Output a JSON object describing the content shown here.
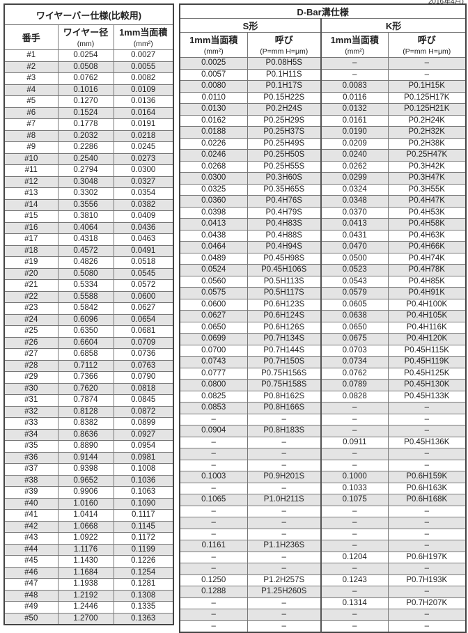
{
  "date_note": "2016年4月)",
  "left": {
    "title": "ワイヤーバー仕様(比較用)",
    "col_no": "番手",
    "col_dia": "ワイヤー径",
    "col_dia_unit": "(mm)",
    "col_area": "1mm当面積",
    "col_area_unit": "(mm²)",
    "rows": [
      [
        "#1",
        "0.0254",
        "0.0027"
      ],
      [
        "#2",
        "0.0508",
        "0.0055"
      ],
      [
        "#3",
        "0.0762",
        "0.0082"
      ],
      [
        "#4",
        "0.1016",
        "0.0109"
      ],
      [
        "#5",
        "0.1270",
        "0.0136"
      ],
      [
        "#6",
        "0.1524",
        "0.0164"
      ],
      [
        "#7",
        "0.1778",
        "0.0191"
      ],
      [
        "#8",
        "0.2032",
        "0.0218"
      ],
      [
        "#9",
        "0.2286",
        "0.0245"
      ],
      [
        "#10",
        "0.2540",
        "0.0273"
      ],
      [
        "#11",
        "0.2794",
        "0.0300"
      ],
      [
        "#12",
        "0.3048",
        "0.0327"
      ],
      [
        "#13",
        "0.3302",
        "0.0354"
      ],
      [
        "#14",
        "0.3556",
        "0.0382"
      ],
      [
        "#15",
        "0.3810",
        "0.0409"
      ],
      [
        "#16",
        "0.4064",
        "0.0436"
      ],
      [
        "#17",
        "0.4318",
        "0.0463"
      ],
      [
        "#18",
        "0.4572",
        "0.0491"
      ],
      [
        "#19",
        "0.4826",
        "0.0518"
      ],
      [
        "#20",
        "0.5080",
        "0.0545"
      ],
      [
        "#21",
        "0.5334",
        "0.0572"
      ],
      [
        "#22",
        "0.5588",
        "0.0600"
      ],
      [
        "#23",
        "0.5842",
        "0.0627"
      ],
      [
        "#24",
        "0.6096",
        "0.0654"
      ],
      [
        "#25",
        "0.6350",
        "0.0681"
      ],
      [
        "#26",
        "0.6604",
        "0.0709"
      ],
      [
        "#27",
        "0.6858",
        "0.0736"
      ],
      [
        "#28",
        "0.7112",
        "0.0763"
      ],
      [
        "#29",
        "0.7366",
        "0.0790"
      ],
      [
        "#30",
        "0.7620",
        "0.0818"
      ],
      [
        "#31",
        "0.7874",
        "0.0845"
      ],
      [
        "#32",
        "0.8128",
        "0.0872"
      ],
      [
        "#33",
        "0.8382",
        "0.0899"
      ],
      [
        "#34",
        "0.8636",
        "0.0927"
      ],
      [
        "#35",
        "0.8890",
        "0.0954"
      ],
      [
        "#36",
        "0.9144",
        "0.0981"
      ],
      [
        "#37",
        "0.9398",
        "0.1008"
      ],
      [
        "#38",
        "0.9652",
        "0.1036"
      ],
      [
        "#39",
        "0.9906",
        "0.1063"
      ],
      [
        "#40",
        "1.0160",
        "0.1090"
      ],
      [
        "#41",
        "1.0414",
        "0.1117"
      ],
      [
        "#42",
        "1.0668",
        "0.1145"
      ],
      [
        "#43",
        "1.0922",
        "0.1172"
      ],
      [
        "#44",
        "1.1176",
        "0.1199"
      ],
      [
        "#45",
        "1.1430",
        "0.1226"
      ],
      [
        "#46",
        "1.1684",
        "0.1254"
      ],
      [
        "#47",
        "1.1938",
        "0.1281"
      ],
      [
        "#48",
        "1.2192",
        "0.1308"
      ],
      [
        "#49",
        "1.2446",
        "0.1335"
      ],
      [
        "#50",
        "1.2700",
        "0.1363"
      ]
    ]
  },
  "right": {
    "title": "D-Bar溝仕様",
    "s_title": "S形",
    "k_title": "K形",
    "col_area": "1mm当面積",
    "col_area_unit": "(mm²)",
    "col_name": "呼び",
    "col_name_unit": "(P=mm H=μm)",
    "rows": [
      [
        "0.0025",
        "P0.08H5S",
        "–",
        "–"
      ],
      [
        "0.0057",
        "P0.1H11S",
        "–",
        "–"
      ],
      [
        "0.0080",
        "P0.1H17S",
        "0.0083",
        "P0.1H15K"
      ],
      [
        "0.0110",
        "P0.15H22S",
        "0.0116",
        "P0.125H17K"
      ],
      [
        "0.0130",
        "P0.2H24S",
        "0.0132",
        "P0.125H21K"
      ],
      [
        "0.0162",
        "P0.25H29S",
        "0.0161",
        "P0.2H24K"
      ],
      [
        "0.0188",
        "P0.25H37S",
        "0.0190",
        "P0.2H32K"
      ],
      [
        "0.0226",
        "P0.25H49S",
        "0.0209",
        "P0.2H38K"
      ],
      [
        "0.0246",
        "P0.25H50S",
        "0.0240",
        "P0.25H47K"
      ],
      [
        "0.0268",
        "P0.25H55S",
        "0.0262",
        "P0.3H42K"
      ],
      [
        "0.0300",
        "P0.3H60S",
        "0.0299",
        "P0.3H47K"
      ],
      [
        "0.0325",
        "P0.35H65S",
        "0.0324",
        "P0.3H55K"
      ],
      [
        "0.0360",
        "P0.4H76S",
        "0.0348",
        "P0.4H47K"
      ],
      [
        "0.0398",
        "P0.4H79S",
        "0.0370",
        "P0.4H53K"
      ],
      [
        "0.0413",
        "P0.4H83S",
        "0.0413",
        "P0.4H58K"
      ],
      [
        "0.0438",
        "P0.4H88S",
        "0.0431",
        "P0.4H63K"
      ],
      [
        "0.0464",
        "P0.4H94S",
        "0.0470",
        "P0.4H66K"
      ],
      [
        "0.0489",
        "P0.45H98S",
        "0.0500",
        "P0.4H74K"
      ],
      [
        "0.0524",
        "P0.45H106S",
        "0.0523",
        "P0.4H78K"
      ],
      [
        "0.0560",
        "P0.5H113S",
        "0.0543",
        "P0.4H85K"
      ],
      [
        "0.0575",
        "P0.5H117S",
        "0.0579",
        "P0.4H91K"
      ],
      [
        "0.0600",
        "P0.6H123S",
        "0.0605",
        "P0.4H100K"
      ],
      [
        "0.0627",
        "P0.6H124S",
        "0.0638",
        "P0.4H105K"
      ],
      [
        "0.0650",
        "P0.6H126S",
        "0.0650",
        "P0.4H116K"
      ],
      [
        "0.0699",
        "P0.7H134S",
        "0.0675",
        "P0.4H120K"
      ],
      [
        "0.0700",
        "P0.7H144S",
        "0.0703",
        "P0.45H115K"
      ],
      [
        "0.0743",
        "P0.7H150S",
        "0.0734",
        "P0.45H119K"
      ],
      [
        "0.0777",
        "P0.75H156S",
        "0.0762",
        "P0.45H125K"
      ],
      [
        "0.0800",
        "P0.75H158S",
        "0.0789",
        "P0.45H130K"
      ],
      [
        "0.0825",
        "P0.8H162S",
        "0.0828",
        "P0.45H133K"
      ],
      [
        "0.0853",
        "P0.8H166S",
        "–",
        "–"
      ],
      [
        "–",
        "–",
        "–",
        "–"
      ],
      [
        "0.0904",
        "P0.8H183S",
        "–",
        "–"
      ],
      [
        "–",
        "–",
        "0.0911",
        "P0.45H136K"
      ],
      [
        "–",
        "–",
        "–",
        "–"
      ],
      [
        "–",
        "–",
        "–",
        "–"
      ],
      [
        "0.1003",
        "P0.9H201S",
        "0.1000",
        "P0.6H159K"
      ],
      [
        "–",
        "–",
        "0.1033",
        "P0.6H163K"
      ],
      [
        "0.1065",
        "P1.0H211S",
        "0.1075",
        "P0.6H168K"
      ],
      [
        "–",
        "–",
        "–",
        "–"
      ],
      [
        "–",
        "–",
        "–",
        "–"
      ],
      [
        "–",
        "–",
        "–",
        "–"
      ],
      [
        "0.1161",
        "P1.1H236S",
        "–",
        "–"
      ],
      [
        "–",
        "–",
        "0.1204",
        "P0.6H197K"
      ],
      [
        "–",
        "–",
        "–",
        "–"
      ],
      [
        "0.1250",
        "P1.2H257S",
        "0.1243",
        "P0.7H193K"
      ],
      [
        "0.1288",
        "P1.25H260S",
        "–",
        "–"
      ],
      [
        "–",
        "–",
        "0.1314",
        "P0.7H207K"
      ],
      [
        "–",
        "–",
        "–",
        "–"
      ],
      [
        "–",
        "–",
        "–",
        "–"
      ]
    ]
  }
}
